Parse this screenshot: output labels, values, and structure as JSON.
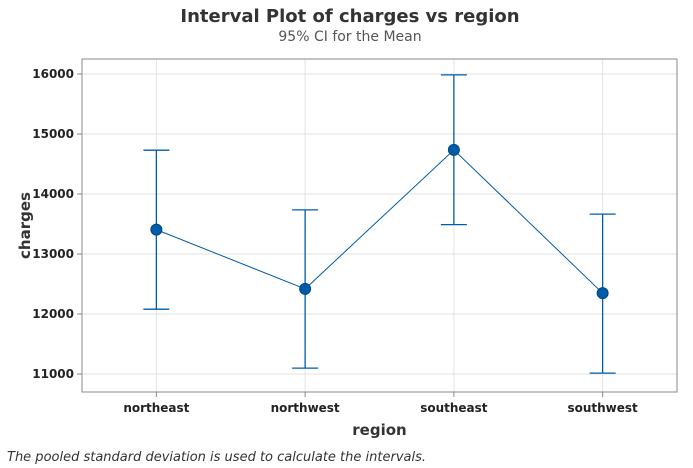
{
  "chart_data": {
    "type": "interval",
    "title": "Interval Plot of charges vs region",
    "subtitle": "95% CI for the Mean",
    "xlabel": "region",
    "ylabel": "charges",
    "categories": [
      "northeast",
      "northwest",
      "southeast",
      "southwest"
    ],
    "means": [
      13406,
      12418,
      14735,
      12347
    ],
    "lower": [
      12080,
      11098,
      13490,
      11015
    ],
    "upper": [
      14730,
      13735,
      15985,
      13665
    ],
    "yticks": [
      11000,
      12000,
      13000,
      14000,
      15000,
      16000
    ],
    "ylim": [
      10700,
      16250
    ],
    "grid": true,
    "color": "#005ca9",
    "gridColor": "#e3e3e3",
    "frameColor": "#8a8a8a",
    "footnote": "The pooled standard deviation is used to calculate the intervals."
  }
}
